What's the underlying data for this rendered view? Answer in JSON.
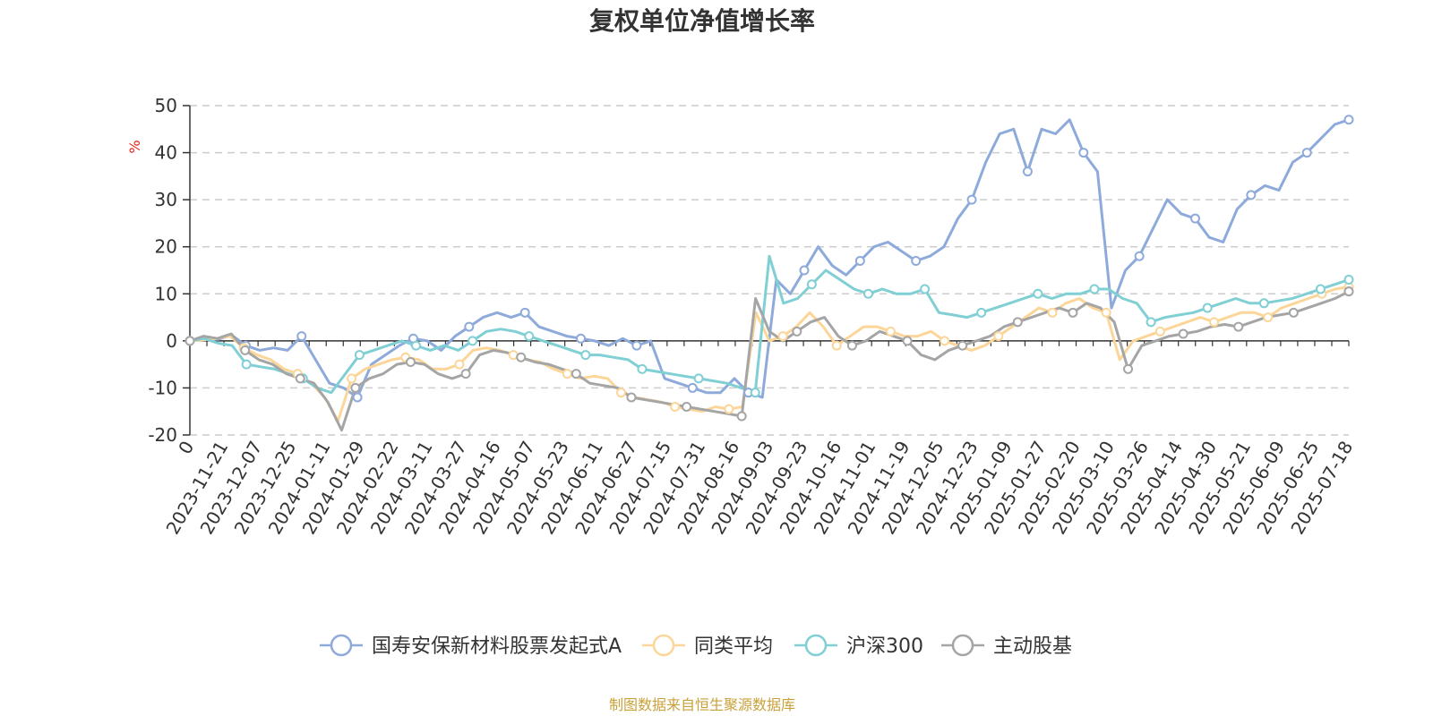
{
  "chart_data": {
    "type": "line",
    "title": "复权单位净值增长率",
    "unit_label": "%",
    "ylim": [
      -20,
      50
    ],
    "y_ticks": [
      50,
      40,
      30,
      20,
      10,
      0,
      -10,
      -20
    ],
    "grid": true,
    "legend_position": "bottom",
    "source_note": "制图数据来自恒生聚源数据库",
    "x_tick_labels": [
      "0",
      "2023-11-21",
      "2023-12-07",
      "2023-12-25",
      "2024-01-11",
      "2024-01-29",
      "2024-02-22",
      "2024-03-11",
      "2024-03-27",
      "2024-04-16",
      "2024-05-07",
      "2024-05-23",
      "2024-06-11",
      "2024-06-27",
      "2024-07-15",
      "2024-07-31",
      "2024-08-16",
      "2024-09-03",
      "2024-09-23",
      "2024-10-16",
      "2024-11-01",
      "2024-11-19",
      "2024-12-05",
      "2024-12-23",
      "2025-01-09",
      "2025-01-27",
      "2025-02-20",
      "2025-03-10",
      "2025-03-26",
      "2025-04-14",
      "2025-04-30",
      "2025-05-21",
      "2025-06-09",
      "2025-06-25",
      "2025-07-18"
    ],
    "series": [
      {
        "name": "国寿安保新材料股票发起式A",
        "color": "#8eaadb",
        "values": [
          0,
          0.5,
          0.3,
          1.2,
          -1,
          -2,
          -1.5,
          -2,
          1,
          -4,
          -9,
          -10,
          -12,
          -5,
          -3,
          -1,
          0.5,
          0,
          -2,
          1,
          3,
          5,
          6,
          5,
          6,
          3,
          2,
          1,
          0.5,
          0,
          -1,
          0.5,
          -1,
          0,
          -8,
          -9,
          -10,
          -11,
          -11,
          -8,
          -11,
          -12,
          13,
          10,
          15,
          20,
          16,
          14,
          17,
          20,
          21,
          19,
          17,
          18,
          20,
          26,
          30,
          38,
          44,
          45,
          36,
          45,
          44,
          47,
          40,
          36,
          7,
          15,
          18,
          24,
          30,
          27,
          26,
          22,
          21,
          28,
          31,
          33,
          32,
          38,
          40,
          43,
          46,
          47
        ]
      },
      {
        "name": "同类平均",
        "color": "#fcd699",
        "values": [
          0,
          0.2,
          0.5,
          1,
          -1.5,
          -3,
          -4,
          -6,
          -7,
          -9,
          -12,
          -17,
          -8,
          -6,
          -5,
          -4,
          -3.5,
          -4,
          -6,
          -6,
          -5,
          -2,
          -1.5,
          -2,
          -3,
          -4,
          -4.5,
          -6,
          -7,
          -8,
          -7.5,
          -8,
          -11,
          -12,
          -12.5,
          -13,
          -14,
          -14.5,
          -15,
          -14,
          -14.5,
          -14,
          6,
          0,
          1,
          3,
          6,
          3,
          -1,
          1,
          3,
          3,
          2,
          1,
          1,
          2,
          0,
          -1,
          -2,
          -1,
          1,
          3,
          5,
          7,
          6,
          8,
          9,
          7,
          6,
          -4,
          0,
          1,
          2,
          3,
          4,
          5,
          4,
          5,
          6,
          6,
          5,
          7,
          8,
          9,
          10,
          11,
          11.5
        ]
      },
      {
        "name": "沪深300",
        "color": "#7fcfd4",
        "values": [
          0,
          0.5,
          -0.5,
          -1,
          -5,
          -5.5,
          -6,
          -7,
          -8,
          -10,
          -11,
          -7,
          -3,
          -2,
          -1,
          0,
          -1,
          -2,
          -1,
          -2,
          0,
          2,
          2.5,
          2,
          1,
          0,
          -1,
          -2,
          -3,
          -3,
          -3.5,
          -4,
          -6,
          -6.5,
          -7,
          -7.5,
          -8,
          -8.5,
          -9,
          -10,
          -11,
          18,
          8,
          9,
          12,
          15,
          13,
          11,
          10,
          11,
          10,
          10,
          11,
          6,
          5.5,
          5,
          6,
          7,
          8,
          9,
          10,
          9,
          10,
          10,
          11,
          11,
          9,
          8,
          4,
          5,
          5.5,
          6,
          7,
          8,
          9,
          8,
          8,
          8.5,
          9,
          10,
          11,
          12,
          13
        ]
      },
      {
        "name": "主动股基",
        "color": "#a5a5a5",
        "values": [
          0,
          1,
          0.5,
          1.5,
          -2,
          -4,
          -5,
          -7,
          -8,
          -9,
          -13,
          -19,
          -10,
          -8,
          -7,
          -5,
          -4.5,
          -5,
          -7,
          -8,
          -7,
          -3,
          -2,
          -2.5,
          -3.5,
          -4.5,
          -5,
          -6,
          -7,
          -9,
          -9.5,
          -10,
          -12,
          -12.5,
          -13,
          -13.5,
          -14,
          -14.5,
          -15,
          -15.5,
          -16,
          9,
          2,
          0,
          2,
          4,
          5,
          1,
          -1,
          0,
          2,
          1,
          0,
          -3,
          -4,
          -2,
          -1,
          0,
          1,
          3,
          4,
          5,
          6,
          7,
          6,
          8,
          7,
          4,
          -6,
          -1,
          0,
          1,
          1.5,
          2,
          3,
          3.5,
          3,
          4,
          5,
          5.5,
          6,
          7,
          8,
          9,
          10.5
        ]
      }
    ]
  }
}
